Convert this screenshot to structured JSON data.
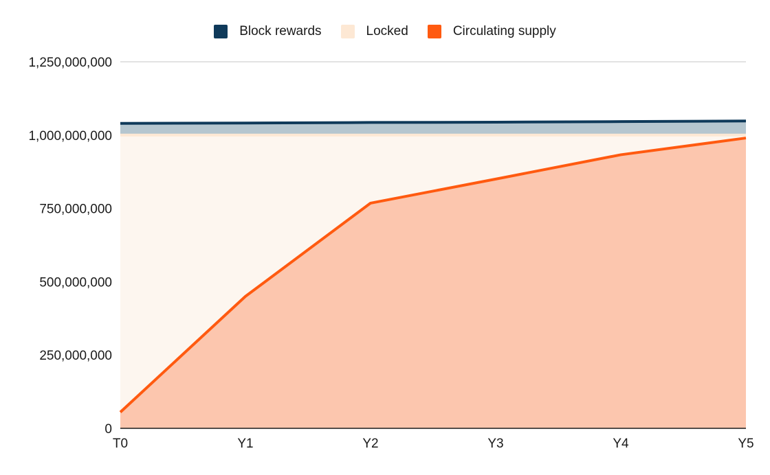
{
  "chart_data": {
    "type": "area",
    "title": "",
    "xlabel": "",
    "ylabel": "",
    "categories": [
      "T0",
      "Y1",
      "Y2",
      "Y3",
      "Y4",
      "Y5"
    ],
    "ylim": [
      0,
      1250000000
    ],
    "yticks": [
      {
        "value": 0,
        "label": "0"
      },
      {
        "value": 250000000,
        "label": "250,000,000"
      },
      {
        "value": 500000000,
        "label": "500,000,000"
      },
      {
        "value": 750000000,
        "label": "750,000,000"
      },
      {
        "value": 1000000000,
        "label": "1,000,000,000"
      },
      {
        "value": 1250000000,
        "label": "1,250,000,000"
      }
    ],
    "grid": true,
    "legend_position": "top-center",
    "stacked": true,
    "series": [
      {
        "name": "Circulating supply",
        "key": "circulating",
        "values": [
          55000000,
          450000000,
          768000000,
          850000000,
          933000000,
          990000000
        ],
        "color": "#ff5a10",
        "fill": "#fcc6ae"
      },
      {
        "name": "Locked",
        "key": "locked",
        "values": [
          945000000,
          550000000,
          232000000,
          150000000,
          67000000,
          10000000
        ],
        "color": "#fde8d4",
        "fill": "#fdf6ef"
      },
      {
        "name": "Block rewards",
        "key": "rewards",
        "values": [
          40000000,
          41000000,
          43000000,
          44000000,
          46000000,
          48000000
        ],
        "color": "#0f3a5a",
        "fill": "#b5c6cf"
      }
    ]
  }
}
